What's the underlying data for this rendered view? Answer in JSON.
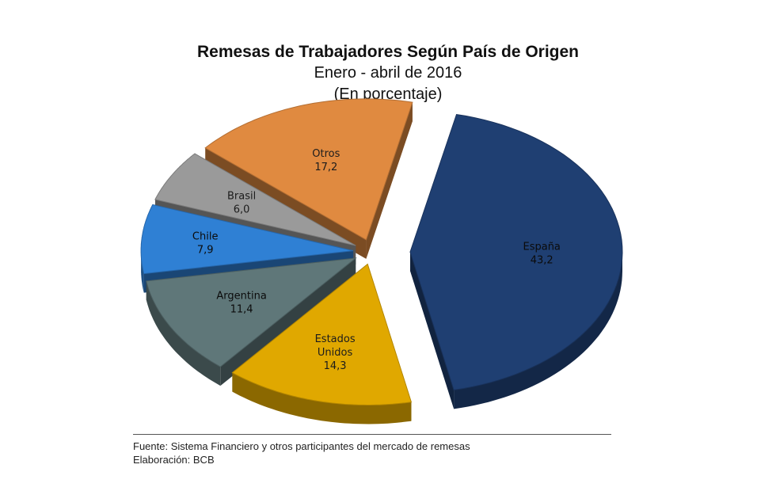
{
  "chart_data": {
    "type": "pie",
    "title": "Remesas de Trabajadores Según País de Origen",
    "subtitle": "Enero - abril de 2016",
    "unit_note": "(En porcentaje)",
    "slices": [
      {
        "label": "España",
        "value_text": "43,2",
        "value": 43.2,
        "color": "#1f3f72"
      },
      {
        "label": "Estados Unidos",
        "value_text": "14,3",
        "value": 14.3,
        "color": "#e0a800"
      },
      {
        "label": "Argentina",
        "value_text": "11,4",
        "value": 11.4,
        "color": "#5f7779"
      },
      {
        "label": "Chile",
        "value_text": "7,9",
        "value": 7.9,
        "color": "#2f80d4"
      },
      {
        "label": "Brasil",
        "value_text": "6,0",
        "value": 6.0,
        "color": "#9a9a9a"
      },
      {
        "label": "Otros",
        "value_text": "17,2",
        "value": 17.2,
        "color": "#e08a40"
      }
    ]
  },
  "footnotes": {
    "source": "Fuente: Sistema Financiero y otros participantes del mercado de remesas",
    "credit": "Elaboración: BCB"
  }
}
